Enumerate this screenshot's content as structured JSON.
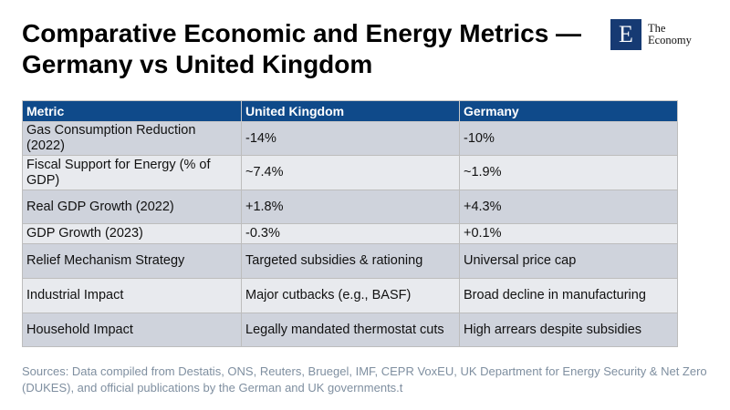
{
  "title": "Comparative Economic and Energy Metrics — Germany vs United Kingdom",
  "logo": {
    "letter": "E",
    "line1": "The",
    "line2": "Economy"
  },
  "table": {
    "headers": [
      "Metric",
      "United Kingdom",
      "Germany"
    ],
    "rows": [
      [
        "Gas Consumption Reduction (2022)",
        "-14%",
        "-10%"
      ],
      [
        "Fiscal Support for Energy (% of GDP)",
        "~7.4%",
        "~1.9%"
      ],
      [
        "Real GDP Growth (2022)",
        "+1.8%",
        "+4.3%"
      ],
      [
        "GDP Growth (2023)",
        "-0.3%",
        "+0.1%"
      ],
      [
        "Relief Mechanism Strategy",
        "Targeted subsidies & rationing",
        "Universal price cap"
      ],
      [
        "Industrial Impact",
        "Major cutbacks (e.g., BASF)",
        "Broad decline in manufacturing"
      ],
      [
        "Household Impact",
        "Legally mandated thermostat cuts",
        "High arrears despite subsidies"
      ]
    ]
  },
  "sources": "Sources: Data compiled from Destatis, ONS, Reuters, Bruegel, IMF, CEPR VoxEU, UK Department for Energy Security & Net Zero (DUKES), and official publications by the German and UK governments.t"
}
